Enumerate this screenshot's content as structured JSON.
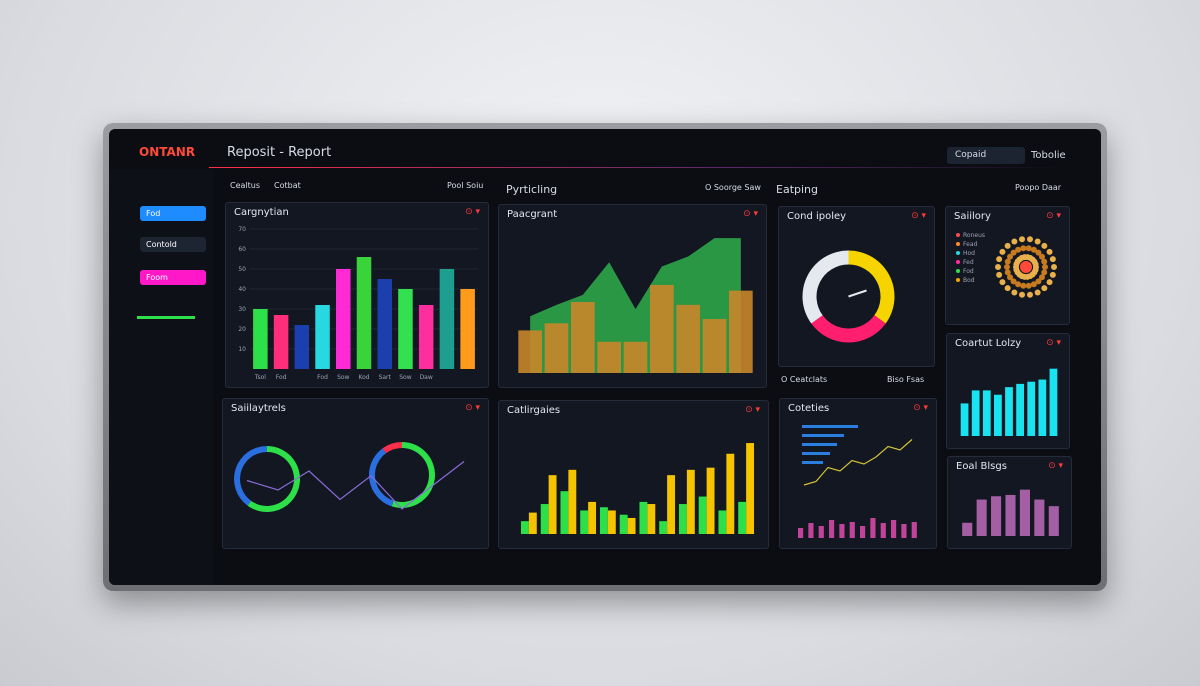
{
  "header": {
    "logo": "ONTANR",
    "title": "Reposit - Report",
    "search": "Copaid",
    "button": "Tobolie"
  },
  "sidebar": {
    "items": [
      "Fod",
      "Contold",
      "Foom"
    ]
  },
  "sections": [
    "Cealtus",
    "Cotbat",
    "Pool Soiu",
    "Pyrticling",
    "O Soorge Saw",
    "Eatping",
    "Poopo Daar",
    "O Ceatclats",
    "Biso Fsas"
  ],
  "panels": [
    {
      "title": "Cargnytian",
      "chart": {
        "type": "bar",
        "values": [
          30,
          27,
          22,
          32,
          50,
          56,
          45,
          40,
          32,
          50,
          40
        ],
        "colors": [
          "#2de04a",
          "#ff2e7a",
          "#1c3fae",
          "#27d8e0",
          "#ff2ad4",
          "#3ad43a",
          "#1c3fae",
          "#33e04f",
          "#ff2e9e",
          "#1e9e8e",
          "#ff9a1c"
        ],
        "categories": [
          "Tsol",
          "Fod",
          null,
          "Fod",
          "Sow",
          "Kod",
          "Sart",
          "Sow",
          "Daw",
          null,
          null
        ],
        "ylim": [
          0,
          70
        ],
        "yticks": [
          10,
          20,
          30,
          40,
          50,
          60,
          70
        ]
      }
    },
    {
      "title": "Paacgrant",
      "chart": {
        "type": "combo",
        "ylim": [
          0,
          100
        ],
        "series": [
          {
            "name": "Area",
            "color": "#2fae4a",
            "values": [
              40,
              48,
              55,
              78,
              45,
              75,
              82,
              95,
              95
            ]
          },
          {
            "name": "Bars",
            "color": "#c9862a",
            "values": [
              30,
              35,
              50,
              22,
              22,
              62,
              48,
              38,
              58
            ]
          }
        ]
      }
    },
    {
      "title": "Cond ipoley",
      "chart": {
        "type": "donut",
        "values": [
          35,
          30,
          35
        ],
        "colors": [
          "#f5d400",
          "#ff1f6e",
          "#e6e8f0"
        ]
      }
    },
    {
      "title": "Saiilory",
      "chart": {
        "type": "radial",
        "labels": [
          "Roneus",
          "Fead",
          "Hod",
          "Fed",
          "Fod",
          "Bod"
        ],
        "colors": [
          "#ff4a4a",
          "#ff8a2a",
          "#27d8e0",
          "#ff2e9e",
          "#2de04a",
          "#f5a400"
        ]
      }
    },
    {
      "title": "Coartut Lolzy",
      "chart": {
        "type": "bar",
        "values": [
          30,
          42,
          42,
          38,
          45,
          48,
          50,
          52,
          62
        ],
        "color": "#19e3f0",
        "ylim": [
          0,
          70
        ]
      }
    },
    {
      "title": "Saiilaytrels",
      "chart": {
        "type": "rings",
        "rings": [
          {
            "values": [
              60,
              40
            ],
            "colors": [
              "#2de04a",
              "#2a6ee0"
            ]
          },
          {
            "values": [
              55,
              35,
              10
            ],
            "colors": [
              "#2de04a",
              "#2a6ee0",
              "#ff2e4a"
            ]
          }
        ],
        "line": {
          "color": "#8a6cd9",
          "values": [
            50,
            40,
            60,
            30,
            55,
            20,
            45,
            70
          ]
        }
      }
    },
    {
      "title": "Catlirgaies",
      "chart": {
        "type": "grouped",
        "ylim": [
          0,
          100
        ],
        "series": [
          {
            "name": "Green",
            "color": "#2de04a",
            "values": [
              12,
              28,
              40,
              22,
              25,
              18,
              30,
              12,
              28,
              35,
              22,
              30
            ]
          },
          {
            "name": "Yellow",
            "color": "#f5c400",
            "values": [
              20,
              55,
              60,
              30,
              22,
              15,
              28,
              55,
              60,
              62,
              75,
              85
            ]
          }
        ]
      }
    },
    {
      "title": "Coteties",
      "chart": {
        "type": "hbarline",
        "hbars": {
          "color": "#2a7ee0",
          "values": [
            80,
            60,
            50,
            40,
            30
          ]
        },
        "line": {
          "color": "#d4c23a",
          "values": [
            20,
            25,
            45,
            40,
            55,
            50,
            60,
            75,
            70,
            85
          ]
        },
        "small": {
          "color": "#c2449a",
          "values": [
            10,
            15,
            12,
            18,
            14,
            16,
            12,
            20,
            15,
            18,
            14,
            16
          ]
        }
      }
    },
    {
      "title": "Eoal Blsgs",
      "chart": {
        "type": "bar",
        "values": [
          20,
          55,
          60,
          62,
          70,
          55,
          45
        ],
        "color": "#a45fa4",
        "ylim": [
          0,
          80
        ]
      }
    }
  ]
}
